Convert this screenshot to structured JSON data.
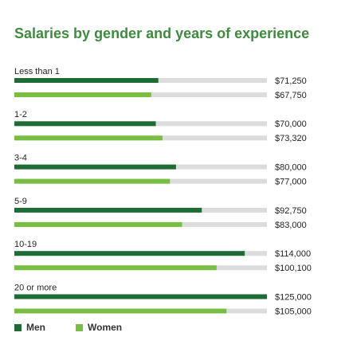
{
  "chart_data": {
    "type": "bar",
    "orientation": "horizontal",
    "title": "Salaries by gender and years of experience",
    "categories": [
      "Less than 1",
      "1-2",
      "3-4",
      "5-9",
      "10-19",
      "20 or more"
    ],
    "series": [
      {
        "name": "Men",
        "color": "#1e6b35",
        "values": [
          71250,
          70000,
          80000,
          92750,
          114000,
          125000
        ],
        "value_labels": [
          "$71,250",
          "$70,000",
          "$80,000",
          "$92,750",
          "$114,000",
          "$125,000"
        ]
      },
      {
        "name": "Women",
        "color": "#78be43",
        "values": [
          67750,
          73320,
          77000,
          83000,
          100100,
          105000
        ],
        "value_labels": [
          "$67,750",
          "$73,320",
          "$77,000",
          "$83,000",
          "$100,100",
          "$105,000"
        ]
      }
    ],
    "track_color": "#dcdcdc"
  }
}
